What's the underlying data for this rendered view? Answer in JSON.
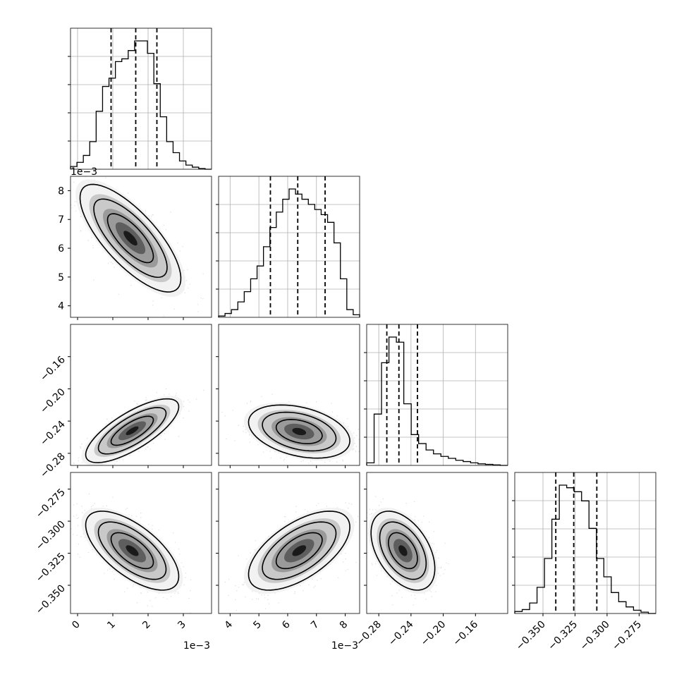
{
  "chart_data": {
    "type": "corner",
    "parameters": [
      {
        "range": [
          -0.2,
          3.8
        ],
        "ticks": [
          0,
          1,
          2,
          3
        ],
        "tick_labels": [
          "0",
          "1",
          "2",
          "3"
        ],
        "offset_label": "1e−3",
        "quantiles": [
          0.95,
          1.65,
          2.25
        ],
        "hist": [
          0.02,
          0.05,
          0.1,
          0.2,
          0.42,
          0.6,
          0.66,
          0.78,
          0.8,
          0.86,
          0.93,
          0.93,
          0.84,
          0.62,
          0.38,
          0.2,
          0.12,
          0.06,
          0.03,
          0.015,
          0.005,
          0.0
        ]
      },
      {
        "range": [
          3.6,
          8.5
        ],
        "ticks": [
          4,
          5,
          6,
          7
        ],
        "tick_labels": [
          "4",
          "5",
          "6",
          "7"
        ],
        "offset_label": "1e−3",
        "x_ticks": [
          4,
          5,
          6,
          7,
          8
        ],
        "x_tick_labels": [
          "4",
          "5",
          "6",
          "7",
          "8"
        ],
        "y_ticks": [
          4,
          5,
          6,
          7,
          8
        ],
        "y_tick_labels": [
          "4",
          "5",
          "6",
          "7",
          "8"
        ],
        "quantiles": [
          5.4,
          6.35,
          7.3
        ],
        "hist": [
          0.01,
          0.03,
          0.06,
          0.12,
          0.2,
          0.3,
          0.4,
          0.55,
          0.7,
          0.82,
          0.92,
          1.0,
          0.96,
          0.92,
          0.88,
          0.84,
          0.8,
          0.74,
          0.58,
          0.3,
          0.06,
          0.02
        ]
      },
      {
        "range": [
          -0.295,
          -0.12
        ],
        "ticks": [
          -0.28,
          -0.24,
          -0.2,
          -0.16
        ],
        "tick_labels": [
          "−0.28",
          "−0.24",
          "−0.20",
          "−0.16"
        ],
        "quantiles": [
          -0.27,
          -0.255,
          -0.232
        ],
        "hist": [
          0.02,
          0.4,
          0.8,
          1.0,
          0.96,
          0.48,
          0.24,
          0.17,
          0.12,
          0.09,
          0.07,
          0.055,
          0.04,
          0.03,
          0.02,
          0.012,
          0.008,
          0.004,
          0.0
        ]
      },
      {
        "range": [
          -0.372,
          -0.262
        ],
        "ticks": [
          -0.35,
          -0.325,
          -0.3,
          -0.275
        ],
        "tick_labels": [
          "−0.350",
          "−0.325",
          "−0.300",
          "−0.275"
        ],
        "quantiles": [
          -0.34,
          -0.326,
          -0.308
        ],
        "hist": [
          0.015,
          0.03,
          0.08,
          0.2,
          0.42,
          0.72,
          0.98,
          0.96,
          0.93,
          0.86,
          0.65,
          0.42,
          0.28,
          0.16,
          0.09,
          0.05,
          0.025,
          0.01,
          0.0
        ]
      }
    ],
    "pairs": [
      {
        "row": 1,
        "col": 0,
        "mean": [
          1.5,
          6.35
        ],
        "sd": [
          0.65,
          0.85
        ],
        "rho": -0.75
      },
      {
        "row": 2,
        "col": 0,
        "mean": [
          1.55,
          -0.252
        ],
        "sd": [
          0.6,
          0.018
        ],
        "rho": 0.75
      },
      {
        "row": 2,
        "col": 1,
        "mean": [
          6.4,
          -0.253
        ],
        "sd": [
          0.8,
          0.015
        ],
        "rho": -0.35
      },
      {
        "row": 3,
        "col": 0,
        "mean": [
          1.55,
          -0.323
        ],
        "sd": [
          0.6,
          0.014
        ],
        "rho": -0.65
      },
      {
        "row": 3,
        "col": 1,
        "mean": [
          6.4,
          -0.323
        ],
        "sd": [
          0.8,
          0.014
        ],
        "rho": 0.6
      },
      {
        "row": 3,
        "col": 2,
        "mean": [
          -0.25,
          -0.323
        ],
        "sd": [
          0.018,
          0.014
        ],
        "rho": -0.45
      }
    ],
    "histogram_style": {
      "color": "#000000",
      "line": "step"
    },
    "quantile_style": {
      "color": "#000000",
      "dash": "dashed"
    },
    "grid": true
  }
}
